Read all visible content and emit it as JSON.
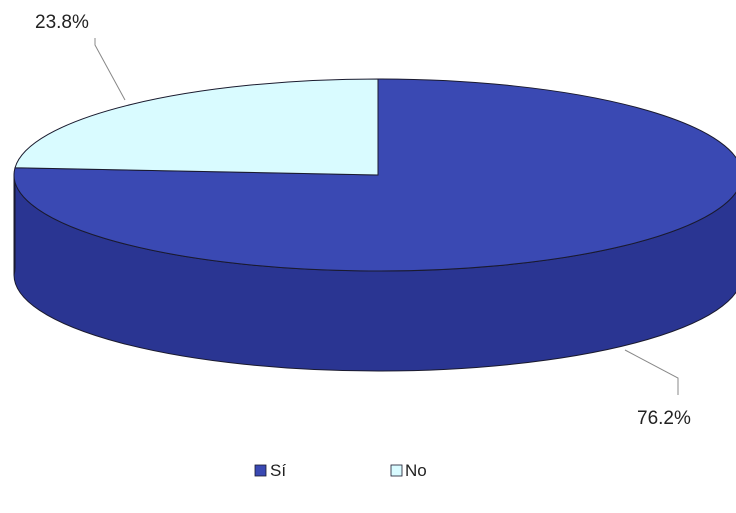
{
  "chart_data": {
    "type": "pie",
    "style": "3d",
    "title": "",
    "series": [
      {
        "values": [
          76.2,
          23.8
        ],
        "labels": [
          "Sí",
          "No"
        ],
        "data_labels": [
          "76.2%",
          "23.8%"
        ]
      }
    ],
    "categories": [
      "Sí",
      "No"
    ],
    "values": [
      76.2,
      23.8
    ],
    "legend": {
      "placement": "bottom",
      "entries": [
        "Sí",
        "No"
      ]
    },
    "colors": {
      "si_top": "#3a49b3",
      "si_side": "#2a3592",
      "no_top": "#d9fbff",
      "outline": "#1a1a2e",
      "leader": "#888888"
    }
  }
}
